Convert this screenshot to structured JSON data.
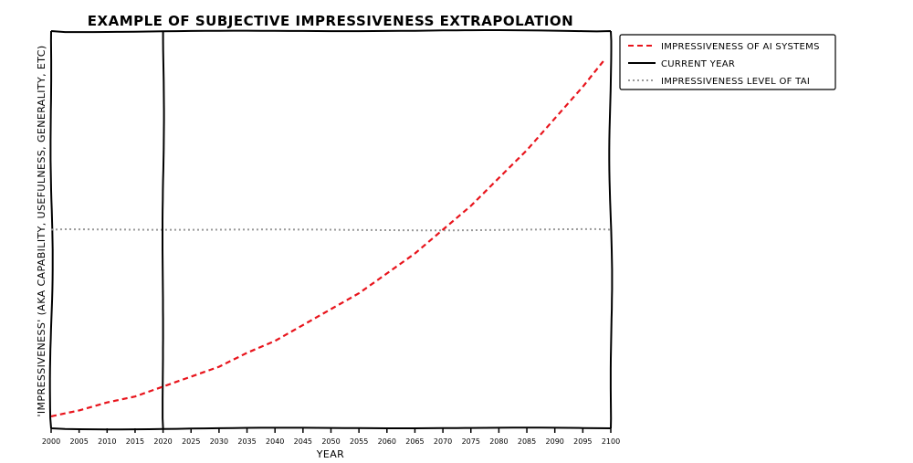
{
  "chart_data": {
    "type": "line",
    "title": "EXAMPLE OF SUBJECTIVE IMPRESSIVENESS EXTRAPOLATION",
    "xlabel": "YEAR",
    "ylabel": "'IMPRESSIVENESS' (AKA CAPABILITY, USEFULNESS, GENERALITY, ETC)",
    "xlim": [
      2000,
      2100
    ],
    "ylim": [
      0,
      100
    ],
    "xticks": [
      2000,
      2005,
      2010,
      2015,
      2020,
      2025,
      2030,
      2035,
      2040,
      2045,
      2050,
      2055,
      2060,
      2065,
      2070,
      2075,
      2080,
      2085,
      2090,
      2095,
      2100
    ],
    "grid": false,
    "legend_position": "outside-top-right",
    "series": [
      {
        "name": "IMPRESSIVENESS OF AI SYSTEMS",
        "style": "dashed",
        "color": "#e8141c",
        "x": [
          2000,
          2005,
          2010,
          2015,
          2020,
          2025,
          2030,
          2035,
          2040,
          2045,
          2050,
          2055,
          2060,
          2065,
          2070,
          2075,
          2080,
          2085,
          2090,
          2095,
          2099
        ],
        "y": [
          3,
          4.5,
          6.5,
          8,
          10.5,
          13,
          15.5,
          19,
          22,
          26,
          30,
          34,
          39,
          44,
          50,
          56,
          63,
          70,
          78,
          86,
          93
        ]
      },
      {
        "name": "CURRENT YEAR",
        "style": "solid",
        "color": "#000000",
        "orientation": "vertical",
        "x": 2020
      },
      {
        "name": "IMPRESSIVENESS LEVEL OF TAI",
        "style": "dotted",
        "color": "#999999",
        "orientation": "horizontal",
        "y": 50
      }
    ]
  }
}
